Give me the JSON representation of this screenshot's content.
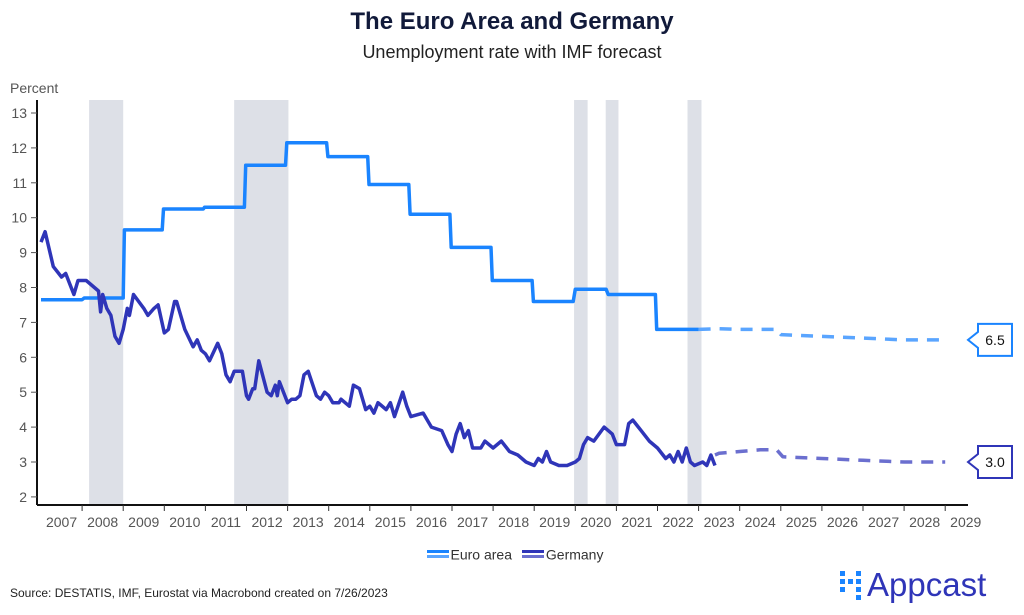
{
  "header": {
    "title": "The Euro Area and Germany",
    "subtitle": "Unemployment rate with IMF forecast"
  },
  "legend": {
    "items": [
      "Euro area",
      "Germany"
    ]
  },
  "footer": {
    "source": "Source: DESTATIS, IMF, Eurostat via Macrobond created on 7/26/2023",
    "logo_text": "Appcast"
  },
  "colors": {
    "euro": "#1a84ff",
    "euro_forecast": "#5aa5ff",
    "germany": "#2f35b8",
    "germany_forecast": "#6b6fcf",
    "recession": "#dde0e7"
  },
  "chart_data": {
    "type": "line",
    "title": "The Euro Area and Germany",
    "subtitle": "Unemployment rate with IMF forecast",
    "ylabel": "Percent",
    "xlabel": "",
    "xlim": [
      2007,
      2029.5
    ],
    "ylim": [
      2,
      13
    ],
    "yticks": [
      2,
      3,
      4,
      5,
      6,
      7,
      8,
      9,
      10,
      11,
      12,
      13
    ],
    "xticks": [
      "2007",
      "2008",
      "2009",
      "2010",
      "2011",
      "2012",
      "2013",
      "2014",
      "2015",
      "2016",
      "2017",
      "2018",
      "2019",
      "2020",
      "2021",
      "2022",
      "2023",
      "2024",
      "2025",
      "2026",
      "2027",
      "2028",
      "2029"
    ],
    "grid": false,
    "legend_position": "bottom",
    "recession_bands": [
      [
        2008.17,
        2009.0
      ],
      [
        2011.7,
        2013.02
      ],
      [
        2019.97,
        2020.3
      ],
      [
        2020.74,
        2021.05
      ],
      [
        2022.73,
        2023.07
      ]
    ],
    "series": [
      {
        "name": "Euro area",
        "style": "solid",
        "x": [
          2007.0,
          2008.0,
          2008.05,
          2009.0,
          2009.03,
          2009.95,
          2009.98,
          2010.95,
          2010.98,
          2011.95,
          2011.98,
          2012.95,
          2012.98,
          2013.95,
          2013.98,
          2014.95,
          2014.98,
          2015.95,
          2015.98,
          2016.95,
          2016.98,
          2017.95,
          2017.98,
          2018.95,
          2018.98,
          2019.95,
          2020.0,
          2020.75,
          2020.8,
          2021.95,
          2021.98,
          2023.0
        ],
        "y": [
          7.65,
          7.65,
          7.7,
          7.7,
          9.65,
          9.65,
          10.25,
          10.25,
          10.3,
          10.3,
          11.5,
          11.5,
          12.15,
          12.15,
          11.75,
          11.75,
          10.95,
          10.95,
          10.1,
          10.1,
          9.15,
          9.15,
          8.2,
          8.2,
          7.6,
          7.6,
          7.95,
          7.95,
          7.8,
          7.8,
          6.8,
          6.8
        ]
      },
      {
        "name": "Euro area forecast",
        "style": "dashed",
        "x": [
          2023.0,
          2023.5,
          2024.0,
          2024.9,
          2025.0,
          2026.0,
          2027.0,
          2028.0,
          2029.0
        ],
        "y": [
          6.8,
          6.82,
          6.8,
          6.8,
          6.65,
          6.6,
          6.55,
          6.5,
          6.5
        ],
        "end_label": "6.5"
      },
      {
        "name": "Germany",
        "style": "solid",
        "x": [
          2007.0,
          2007.1,
          2007.3,
          2007.5,
          2007.6,
          2007.8,
          2007.9,
          2008.1,
          2008.3,
          2008.4,
          2008.45,
          2008.5,
          2008.6,
          2008.7,
          2008.8,
          2008.9,
          2009.0,
          2009.1,
          2009.15,
          2009.25,
          2009.5,
          2009.6,
          2009.75,
          2009.85,
          2010.0,
          2010.1,
          2010.25,
          2010.3,
          2010.5,
          2010.7,
          2010.8,
          2010.9,
          2011.0,
          2011.1,
          2011.3,
          2011.4,
          2011.5,
          2011.6,
          2011.7,
          2011.9,
          2012.0,
          2012.05,
          2012.15,
          2012.2,
          2012.3,
          2012.5,
          2012.6,
          2012.7,
          2012.75,
          2012.8,
          2013.0,
          2013.1,
          2013.2,
          2013.3,
          2013.4,
          2013.5,
          2013.7,
          2013.8,
          2013.9,
          2014.0,
          2014.1,
          2014.25,
          2014.3,
          2014.5,
          2014.6,
          2014.75,
          2014.9,
          2015.0,
          2015.1,
          2015.2,
          2015.4,
          2015.5,
          2015.6,
          2015.8,
          2015.9,
          2016.0,
          2016.3,
          2016.5,
          2016.75,
          2016.9,
          2017.0,
          2017.1,
          2017.2,
          2017.3,
          2017.4,
          2017.5,
          2017.7,
          2017.8,
          2018.0,
          2018.2,
          2018.4,
          2018.6,
          2018.8,
          2019.0,
          2019.1,
          2019.2,
          2019.3,
          2019.4,
          2019.6,
          2019.8,
          2020.0,
          2020.1,
          2020.2,
          2020.3,
          2020.45,
          2020.7,
          2020.9,
          2021.0,
          2021.2,
          2021.3,
          2021.4,
          2021.6,
          2021.8,
          2022.0,
          2022.2,
          2022.3,
          2022.4,
          2022.5,
          2022.6,
          2022.7,
          2022.8,
          2022.9,
          2023.1,
          2023.2,
          2023.3,
          2023.4
        ],
        "y": [
          9.3,
          9.6,
          8.6,
          8.3,
          8.4,
          7.8,
          8.2,
          8.2,
          8.0,
          7.9,
          7.3,
          7.8,
          7.4,
          7.2,
          6.6,
          6.4,
          6.8,
          7.4,
          7.2,
          7.8,
          7.4,
          7.2,
          7.4,
          7.5,
          6.7,
          6.8,
          7.6,
          7.6,
          6.8,
          6.3,
          6.5,
          6.2,
          6.1,
          5.9,
          6.4,
          6.1,
          5.5,
          5.3,
          5.6,
          5.6,
          4.9,
          4.8,
          5.1,
          5.1,
          5.9,
          5.0,
          4.9,
          5.2,
          4.9,
          5.3,
          4.7,
          4.8,
          4.8,
          4.9,
          5.5,
          5.6,
          4.9,
          4.8,
          5.0,
          4.9,
          4.7,
          4.7,
          4.8,
          4.6,
          5.2,
          5.1,
          4.5,
          4.6,
          4.4,
          4.7,
          4.5,
          4.7,
          4.3,
          5.0,
          4.6,
          4.3,
          4.4,
          4.0,
          3.9,
          3.5,
          3.3,
          3.8,
          4.1,
          3.7,
          3.9,
          3.4,
          3.4,
          3.6,
          3.4,
          3.6,
          3.3,
          3.2,
          3.0,
          2.9,
          3.1,
          3.0,
          3.3,
          3.0,
          2.9,
          2.9,
          3.0,
          3.1,
          3.5,
          3.7,
          3.6,
          4.0,
          3.8,
          3.5,
          3.5,
          4.1,
          4.2,
          3.9,
          3.6,
          3.4,
          3.1,
          3.2,
          3.0,
          3.3,
          3.0,
          3.4,
          3.0,
          2.9,
          3.0,
          2.9,
          3.2,
          2.9
        ]
      },
      {
        "name": "Germany forecast",
        "style": "dashed",
        "x": [
          2023.4,
          2023.5,
          2024.0,
          2024.5,
          2024.9,
          2025.05,
          2026.0,
          2027.0,
          2028.0,
          2029.0
        ],
        "y": [
          3.2,
          3.25,
          3.3,
          3.35,
          3.35,
          3.15,
          3.1,
          3.05,
          3.0,
          3.0
        ],
        "end_label": "3.0"
      }
    ]
  }
}
